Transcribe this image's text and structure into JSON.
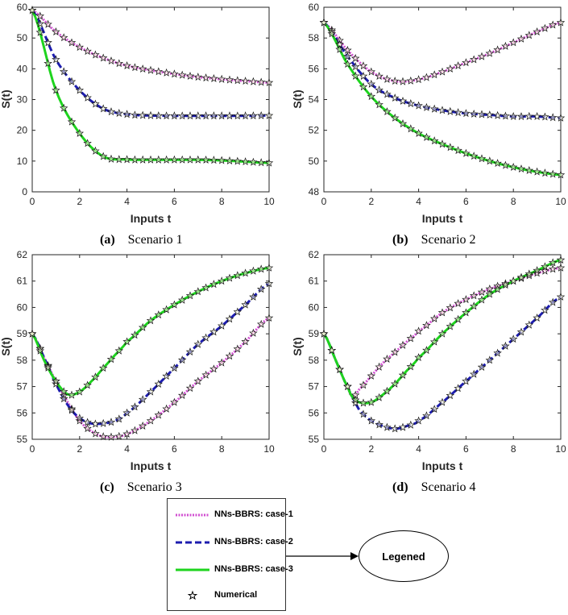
{
  "figure": {
    "series_styles": [
      {
        "name": "NNs-BBRS: case-1",
        "color": "#d14fd1",
        "dash": "dotted"
      },
      {
        "name": "NNs-BBRS: case-2",
        "color": "#1c1cae",
        "dash": "dashed"
      },
      {
        "name": "NNs-BBRS: case-3",
        "color": "#1ed41e",
        "dash": "solid"
      }
    ],
    "marker_name": "Numerical",
    "legend": {
      "items": [
        {
          "label": "NNs-BBRS: case-1"
        },
        {
          "label": "NNs-BBRS: case-2"
        },
        {
          "label": "NNs-BBRS: case-3"
        },
        {
          "label": "Numerical"
        }
      ]
    },
    "callout": {
      "label": "Legened"
    }
  },
  "chart_data": [
    {
      "type": "line",
      "panel_letter": "(a)",
      "caption": "Scenario 1",
      "xlabel": "Inputs t",
      "ylabel": "S(t)",
      "xlim": [
        0,
        10
      ],
      "ylim": [
        0,
        60
      ],
      "xticks": [
        0,
        2,
        4,
        6,
        8,
        10
      ],
      "yticks": [
        0,
        10,
        20,
        30,
        40,
        50,
        60
      ],
      "x": [
        0,
        1,
        2,
        3,
        4,
        5,
        6,
        7,
        8,
        9,
        10
      ],
      "series": [
        {
          "name": "NNs-BBRS: case-1",
          "values": [
            59,
            52,
            47,
            43.5,
            41,
            39.5,
            38.3,
            37.3,
            36.6,
            36,
            35.5
          ]
        },
        {
          "name": "NNs-BBRS: case-2",
          "values": [
            59,
            43,
            33,
            27,
            25.2,
            24.8,
            24.7,
            24.7,
            24.7,
            24.7,
            24.8
          ]
        },
        {
          "name": "NNs-BBRS: case-3",
          "values": [
            59,
            33,
            19,
            11.5,
            10.5,
            10.4,
            10.4,
            10.4,
            10.2,
            9.8,
            9.4
          ]
        }
      ]
    },
    {
      "type": "line",
      "panel_letter": "(b)",
      "caption": "Scenario 2",
      "xlabel": "Inputs t",
      "ylabel": "S(t)",
      "xlim": [
        0,
        10
      ],
      "ylim": [
        48,
        60
      ],
      "xticks": [
        0,
        2,
        4,
        6,
        8,
        10
      ],
      "yticks": [
        48,
        50,
        52,
        54,
        56,
        58,
        60
      ],
      "x": [
        0,
        1,
        2,
        3,
        4,
        5,
        6,
        7,
        8,
        9,
        10
      ],
      "series": [
        {
          "name": "NNs-BBRS: case-1",
          "values": [
            59,
            57.2,
            55.8,
            55.2,
            55.3,
            55.8,
            56.4,
            57,
            57.7,
            58.4,
            59
          ]
        },
        {
          "name": "NNs-BBRS: case-2",
          "values": [
            59,
            56.8,
            55,
            54.1,
            53.6,
            53.3,
            53.1,
            53,
            52.9,
            52.9,
            52.8
          ]
        },
        {
          "name": "NNs-BBRS: case-3",
          "values": [
            59,
            56.3,
            54.2,
            52.8,
            51.8,
            51.1,
            50.5,
            50,
            49.6,
            49.3,
            49.1
          ]
        }
      ]
    },
    {
      "type": "line",
      "panel_letter": "(c)",
      "caption": "Scenario 3",
      "xlabel": "Inputs t",
      "ylabel": "S(t)",
      "xlim": [
        0,
        10
      ],
      "ylim": [
        55,
        62
      ],
      "xticks": [
        0,
        2,
        4,
        6,
        8,
        10
      ],
      "yticks": [
        55,
        56,
        57,
        58,
        59,
        60,
        61,
        62
      ],
      "x": [
        0,
        0.5,
        1,
        1.5,
        2,
        2.5,
        3,
        3.5,
        4,
        5,
        6,
        7,
        8,
        9,
        10
      ],
      "series": [
        {
          "name": "NNs-BBRS: case-1",
          "values": [
            59,
            58.1,
            57.2,
            56.4,
            55.7,
            55.3,
            55.1,
            55.1,
            55.2,
            55.7,
            56.4,
            57.2,
            57.9,
            58.7,
            59.6
          ]
        },
        {
          "name": "NNs-BBRS: case-2",
          "values": [
            59,
            58.1,
            57.1,
            56.3,
            55.8,
            55.6,
            55.6,
            55.7,
            56,
            56.8,
            57.7,
            58.6,
            59.3,
            60.1,
            60.9
          ]
        },
        {
          "name": "NNs-BBRS: case-3",
          "values": [
            59,
            58,
            57.2,
            56.7,
            56.8,
            57.2,
            57.7,
            58.2,
            58.7,
            59.5,
            60.1,
            60.6,
            61,
            61.3,
            61.5
          ]
        }
      ]
    },
    {
      "type": "line",
      "panel_letter": "(d)",
      "caption": "Scenario 4",
      "xlabel": "Inputs t",
      "ylabel": "S(t)",
      "xlim": [
        0,
        10
      ],
      "ylim": [
        55,
        62
      ],
      "xticks": [
        0,
        2,
        4,
        6,
        8,
        10
      ],
      "yticks": [
        55,
        56,
        57,
        58,
        59,
        60,
        61,
        62
      ],
      "x": [
        0,
        0.5,
        1,
        1.2,
        1.5,
        2,
        2.5,
        3,
        3.5,
        4,
        5,
        6,
        7,
        8,
        9,
        10
      ],
      "series": [
        {
          "name": "NNs-BBRS: case-1",
          "values": [
            59,
            58,
            57,
            56.6,
            56.9,
            57.4,
            57.9,
            58.3,
            58.7,
            59.1,
            59.8,
            60.3,
            60.7,
            61,
            61.3,
            61.5
          ]
        },
        {
          "name": "NNs-BBRS: case-2",
          "values": [
            59,
            58,
            57,
            56.6,
            56.1,
            55.7,
            55.5,
            55.4,
            55.5,
            55.7,
            56.4,
            57.2,
            58,
            58.8,
            59.6,
            60.4
          ]
        },
        {
          "name": "NNs-BBRS: case-3",
          "values": [
            59,
            58,
            57,
            56.6,
            56.4,
            56.4,
            56.7,
            57.1,
            57.6,
            58.1,
            59,
            59.8,
            60.5,
            61,
            61.4,
            61.8
          ]
        }
      ]
    }
  ]
}
